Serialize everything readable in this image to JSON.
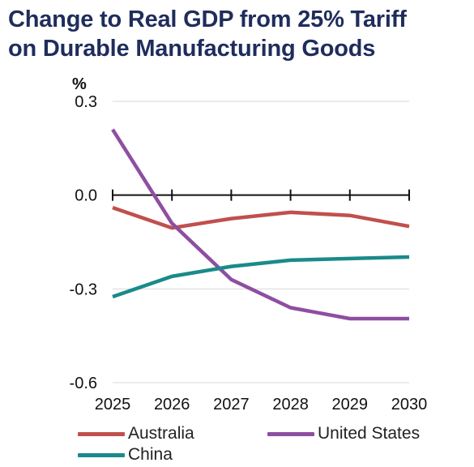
{
  "title_line1": "Change to Real GDP from 25% Tariff",
  "title_line2": "on Durable Manufacturing Goods",
  "chart_data": {
    "type": "line",
    "title": "Change to Real GDP from 25% Tariff on Durable Manufacturing Goods",
    "ylabel": "%",
    "xlabel": "",
    "x": [
      2025,
      2026,
      2027,
      2028,
      2029,
      2030
    ],
    "x_tick_labels": [
      "2025",
      "2026",
      "2027",
      "2028",
      "2029",
      "2030"
    ],
    "ylim": [
      -0.6,
      0.3
    ],
    "y_ticks": [
      0.3,
      0.0,
      -0.3,
      -0.6
    ],
    "y_tick_labels": [
      "0.3",
      "0.0",
      "-0.3",
      "-0.6"
    ],
    "grid": true,
    "legend_position": "bottom",
    "series": [
      {
        "name": "Australia",
        "color": "#c0504d",
        "values": [
          -0.04,
          -0.105,
          -0.075,
          -0.055,
          -0.065,
          -0.1
        ]
      },
      {
        "name": "United States",
        "color": "#8e4ea1",
        "values": [
          0.21,
          -0.09,
          -0.27,
          -0.36,
          -0.395,
          -0.395
        ]
      },
      {
        "name": "China",
        "color": "#1a8a8a",
        "values": [
          -0.325,
          -0.26,
          -0.228,
          -0.208,
          -0.203,
          -0.198
        ]
      }
    ]
  }
}
